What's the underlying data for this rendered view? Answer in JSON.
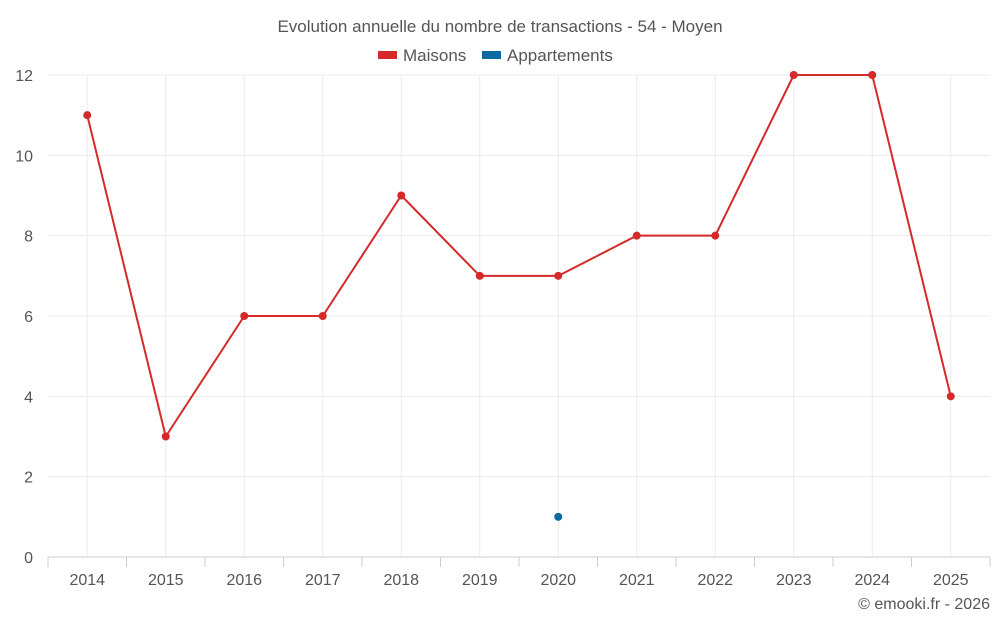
{
  "chart_data": {
    "type": "line",
    "title": "Evolution annuelle du nombre de transactions - 54 - Moyen",
    "categories": [
      "2014",
      "2015",
      "2016",
      "2017",
      "2018",
      "2019",
      "2020",
      "2021",
      "2022",
      "2023",
      "2024",
      "2025"
    ],
    "ylim": [
      0,
      12
    ],
    "yticks": [
      0,
      2,
      4,
      6,
      8,
      10,
      12
    ],
    "grid": true,
    "legend_position": "top-center",
    "series": [
      {
        "name": "Maisons",
        "color": "#d42a2a",
        "values": [
          11,
          3,
          6,
          6,
          9,
          7,
          7,
          8,
          8,
          12,
          12,
          4
        ]
      },
      {
        "name": "Appartements",
        "color": "#0b6aa2",
        "values": [
          null,
          null,
          null,
          null,
          null,
          null,
          1,
          null,
          null,
          null,
          null,
          null
        ]
      }
    ]
  },
  "credit": "© emooki.fr - 2026"
}
